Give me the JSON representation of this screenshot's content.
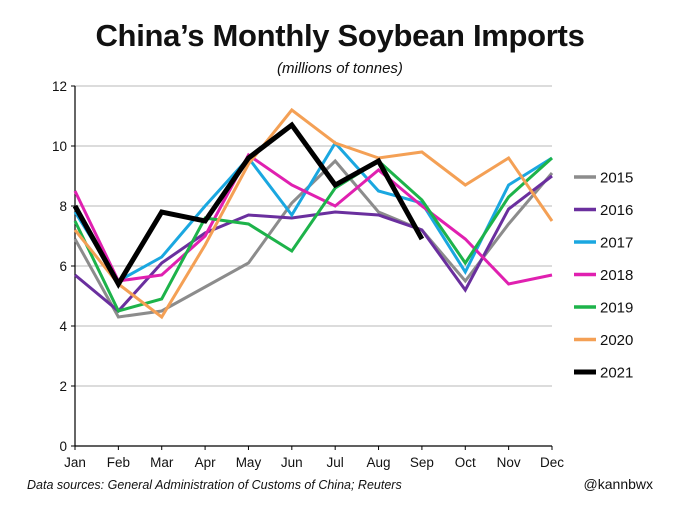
{
  "header": {
    "title": "China’s Monthly Soybean Imports",
    "subtitle": "(millions of tonnes)"
  },
  "footer": {
    "source": "Data sources: General Administration of Customs of China; Reuters",
    "credit": "@kannbwx"
  },
  "chart_data": {
    "type": "line",
    "title": "China’s Monthly Soybean Imports",
    "subtitle": "(millions of tonnes)",
    "xlabel": "",
    "ylabel": "",
    "categories": [
      "Jan",
      "Feb",
      "Mar",
      "Apr",
      "May",
      "Jun",
      "Jul",
      "Aug",
      "Sep",
      "Oct",
      "Nov",
      "Dec"
    ],
    "ylim": [
      0,
      12
    ],
    "yticks": [
      0,
      2,
      4,
      6,
      8,
      10,
      12
    ],
    "grid": "horizontal",
    "legend_position": "right",
    "series": [
      {
        "name": "2015",
        "color": "#8c8c8c",
        "width": 3,
        "values": [
          6.9,
          4.3,
          4.5,
          5.3,
          6.1,
          8.1,
          9.5,
          7.8,
          7.2,
          5.5,
          7.4,
          9.1
        ]
      },
      {
        "name": "2016",
        "color": "#6a2f9e",
        "width": 3,
        "values": [
          5.7,
          4.5,
          6.1,
          7.1,
          7.7,
          7.6,
          7.8,
          7.7,
          7.2,
          5.2,
          7.9,
          9.0
        ]
      },
      {
        "name": "2017",
        "color": "#1aa7e0",
        "width": 3,
        "values": [
          7.8,
          5.5,
          6.3,
          8.0,
          9.6,
          7.7,
          10.1,
          8.5,
          8.1,
          5.8,
          8.7,
          9.6
        ]
      },
      {
        "name": "2018",
        "color": "#e020b0",
        "width": 3,
        "values": [
          8.5,
          5.5,
          5.7,
          7.0,
          9.7,
          8.7,
          8.0,
          9.2,
          8.0,
          6.9,
          5.4,
          5.7
        ]
      },
      {
        "name": "2019",
        "color": "#1db34a",
        "width": 3,
        "values": [
          7.5,
          4.5,
          4.9,
          7.6,
          7.4,
          6.5,
          8.6,
          9.5,
          8.2,
          6.1,
          8.3,
          9.6
        ]
      },
      {
        "name": "2020",
        "color": "#f4a055",
        "width": 3,
        "values": [
          7.2,
          5.4,
          4.3,
          6.7,
          9.4,
          11.2,
          10.1,
          9.6,
          9.8,
          8.7,
          9.6,
          7.5
        ]
      },
      {
        "name": "2021",
        "color": "#000000",
        "width": 5,
        "values": [
          8.0,
          5.4,
          7.8,
          7.5,
          9.6,
          10.7,
          8.7,
          9.5,
          6.9,
          null,
          null,
          null
        ]
      }
    ]
  }
}
